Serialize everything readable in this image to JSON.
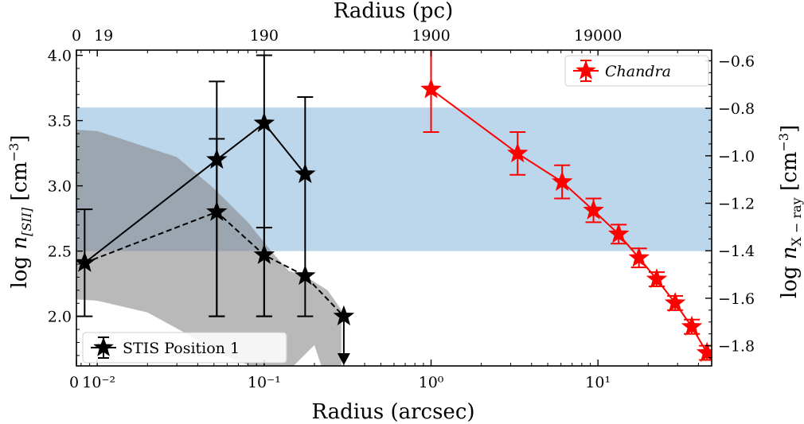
{
  "chart_data": {
    "type": "scatter",
    "x_axis_bottom": {
      "label": "Radius (arcsec)",
      "scale": "log",
      "xlim": [
        0.0075,
        48
      ],
      "ticks": [
        {
          "value": 0.0075,
          "label": "0"
        },
        {
          "value": 0.01,
          "label": "10⁻²"
        },
        {
          "value": 0.1,
          "label": "10⁻¹"
        },
        {
          "value": 1,
          "label": "10⁰"
        },
        {
          "value": 10,
          "label": "10¹"
        }
      ]
    },
    "x_axis_top": {
      "label": "Radius (pc)",
      "ticks": [
        {
          "value": 0.0075,
          "label": "0"
        },
        {
          "value": 0.01,
          "label": "19"
        },
        {
          "value": 0.1,
          "label": "190"
        },
        {
          "value": 1,
          "label": "1900"
        },
        {
          "value": 10,
          "label": "19000"
        }
      ]
    },
    "y_axis_left": {
      "label": "log n[SII] [cm⁻³]",
      "label_parts": {
        "pre": "log ",
        "var": "n",
        "sub": "[SII]",
        "unit": " [cm",
        "sup": "−3",
        "close": "]"
      },
      "ylim": [
        1.62,
        4.04
      ],
      "ticks": [
        "2.0",
        "2.5",
        "3.0",
        "3.5",
        "4.0"
      ]
    },
    "y_axis_right": {
      "label": "log nX − ray [cm⁻³]",
      "label_parts": {
        "pre": "log ",
        "var": "n",
        "sub": "X − ray",
        "unit": " [cm",
        "sup": "−3",
        "close": "]"
      },
      "ylim": [
        -1.885,
        -0.555
      ],
      "ticks": [
        "−0.6",
        "−0.8",
        "−1.0",
        "−1.2",
        "−1.4",
        "−1.6",
        "−1.8"
      ]
    },
    "band": {
      "y_range_left": [
        2.5,
        3.6
      ],
      "color": "#bcd6eb"
    },
    "shaded_region": {
      "color": "#808080",
      "upper": [
        [
          0.0075,
          3.43
        ],
        [
          0.01,
          3.42
        ],
        [
          0.03,
          3.22
        ],
        [
          0.05,
          2.98
        ],
        [
          0.08,
          2.72
        ],
        [
          0.11,
          2.5
        ],
        [
          0.14,
          2.35
        ],
        [
          0.18,
          2.3
        ],
        [
          0.24,
          2.2
        ],
        [
          0.29,
          2.05
        ]
      ],
      "lower": [
        [
          0.29,
          1.62
        ],
        [
          0.22,
          1.62
        ],
        [
          0.2,
          1.78
        ],
        [
          0.15,
          1.62
        ],
        [
          0.13,
          1.6
        ],
        [
          0.09,
          1.6
        ],
        [
          0.058,
          1.7
        ],
        [
          0.04,
          1.82
        ],
        [
          0.02,
          2.03
        ],
        [
          0.01,
          2.12
        ],
        [
          0.0075,
          2.13
        ]
      ]
    },
    "series": [
      {
        "name": "STIS Position 1",
        "axis": "left",
        "color": "#000000",
        "line": "solid",
        "points": [
          {
            "x": 0.0084,
            "y": 2.41,
            "err_lo": 0.41,
            "err_hi": 0.41
          },
          {
            "x": 0.052,
            "y": 3.2,
            "err_lo": 1.2,
            "err_hi": 0.6
          },
          {
            "x": 0.1,
            "y": 3.48,
            "err_lo": 1.48,
            "err_hi": 0.52
          },
          {
            "x": 0.176,
            "y": 3.09,
            "err_lo": 1.09,
            "err_hi": 0.59
          }
        ]
      },
      {
        "name": "",
        "axis": "left",
        "color": "#000000",
        "line": "dashed",
        "points": [
          {
            "x": 0.0084,
            "y": 2.41
          },
          {
            "x": 0.052,
            "y": 2.8,
            "err_lo": 0.8,
            "err_hi": 0.56
          },
          {
            "x": 0.1,
            "y": 2.47,
            "err_lo": 0.47,
            "err_hi": 0.21
          },
          {
            "x": 0.176,
            "y": 2.31
          },
          {
            "x": 0.3,
            "y": 2.0
          }
        ]
      },
      {
        "name": "Chandra",
        "axis": "right",
        "color": "#ff0000",
        "line": "solid",
        "points": [
          {
            "x": 1.0,
            "y": -0.72,
            "err_lo": 0.18,
            "err_hi": 0.18
          },
          {
            "x": 3.3,
            "y": -0.99,
            "err_lo": 0.09,
            "err_hi": 0.09
          },
          {
            "x": 6.1,
            "y": -1.11,
            "err_lo": 0.07,
            "err_hi": 0.07
          },
          {
            "x": 9.4,
            "y": -1.23,
            "err_lo": 0.05,
            "err_hi": 0.05
          },
          {
            "x": 13.3,
            "y": -1.33,
            "err_lo": 0.04,
            "err_hi": 0.04
          },
          {
            "x": 17.6,
            "y": -1.43,
            "err_lo": 0.04,
            "err_hi": 0.04
          },
          {
            "x": 22.5,
            "y": -1.52,
            "err_lo": 0.03,
            "err_hi": 0.03
          },
          {
            "x": 29.0,
            "y": -1.62,
            "err_lo": 0.03,
            "err_hi": 0.03
          },
          {
            "x": 36.5,
            "y": -1.72,
            "err_lo": 0.03,
            "err_hi": 0.03
          },
          {
            "x": 45.0,
            "y": -1.83,
            "err_lo": 0.03,
            "err_hi": 0.03
          }
        ]
      }
    ],
    "upper_limits": [
      {
        "x": 0.3,
        "y_top": 2.0,
        "y_bottom": 1.62,
        "color": "#000000"
      }
    ],
    "legends": [
      {
        "placement": "upper-right",
        "label": "Chandra",
        "italic": true,
        "color": "#ff0000"
      },
      {
        "placement": "lower-left",
        "label": "STIS Position 1",
        "italic": false,
        "color": "#000000"
      }
    ],
    "grid": false
  }
}
